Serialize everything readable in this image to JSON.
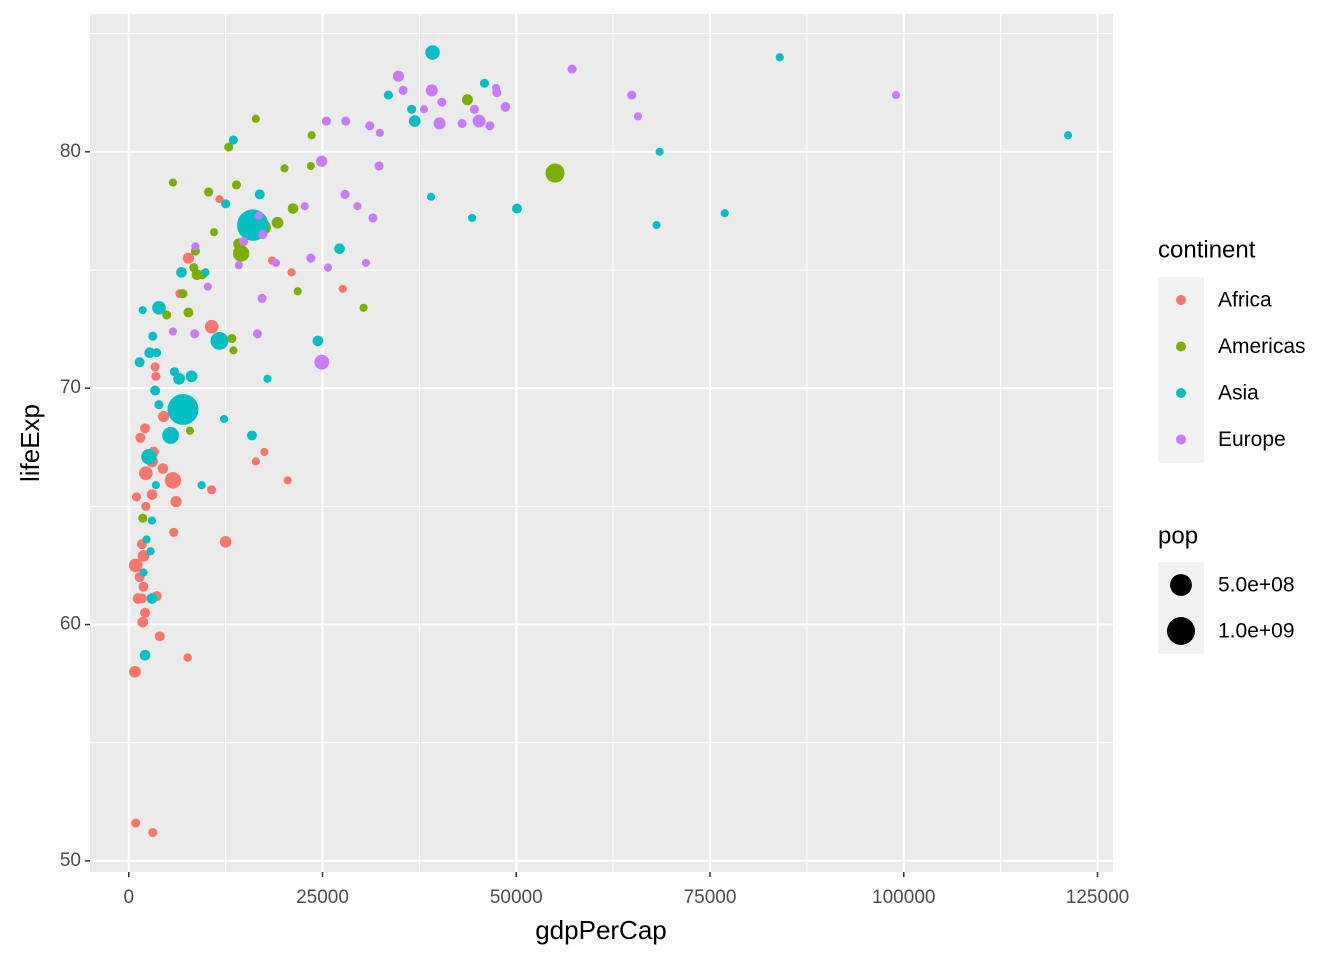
{
  "chart_data": {
    "type": "scatter",
    "x_label": "gdpPerCap",
    "y_label": "lifeExp",
    "xlim": [
      -5000,
      127000
    ],
    "ylim": [
      49.53,
      85.83
    ],
    "xticks": [
      0,
      25000,
      50000,
      75000,
      100000,
      125000
    ],
    "yticks": [
      50,
      60,
      70,
      80
    ],
    "grid": true,
    "legend_position": "right",
    "color_legend_title": "continent",
    "size_legend_title": "pop",
    "size_legend": [
      {
        "value": 500000000,
        "label": "5.0e+08"
      },
      {
        "value": 1000000000,
        "label": "1.0e+09"
      }
    ],
    "series": [
      {
        "name": "Africa",
        "color": "#F8766D",
        "x": [
          900,
          3100,
          800,
          7600,
          4000,
          1800,
          2100,
          1700,
          3600,
          1200,
          1900,
          1400,
          900,
          1900,
          1700,
          12500,
          5800,
          1000,
          3000,
          2200,
          6100,
          10700,
          20500,
          5700,
          2200,
          3000,
          3200,
          17500,
          16400,
          4400,
          1500,
          2100,
          4500,
          3500,
          3400,
          10700,
          6600,
          7700,
          18500,
          21000,
          27600,
          11700
        ],
        "values": [
          51.6,
          51.2,
          58.0,
          58.6,
          59.5,
          60.1,
          60.5,
          61.1,
          61.2,
          61.1,
          61.6,
          62.0,
          62.5,
          62.9,
          63.4,
          63.5,
          63.9,
          65.4,
          65.5,
          65.0,
          65.2,
          65.7,
          66.1,
          66.1,
          66.4,
          66.9,
          67.3,
          67.3,
          66.9,
          66.6,
          67.9,
          68.3,
          68.8,
          70.5,
          70.9,
          72.6,
          74.0,
          75.5,
          75.4,
          74.9,
          74.2,
          78.0
        ],
        "sizes": [
          10000000,
          10000000,
          50000000,
          5000000,
          20000000,
          30000000,
          20000000,
          20000000,
          20000000,
          30000000,
          20000000,
          20000000,
          100000000,
          50000000,
          20000000,
          50000000,
          10000000,
          10000000,
          30000000,
          10000000,
          40000000,
          10000000,
          3000000,
          200000000,
          100000000,
          50000000,
          30000000,
          3000000,
          3000000,
          30000000,
          20000000,
          20000000,
          40000000,
          10000000,
          10000000,
          100000000,
          10000000,
          40000000,
          3000000,
          3000000,
          3000000,
          3000000
        ]
      },
      {
        "name": "Americas",
        "color": "#7CAE00",
        "x": [
          1800,
          7900,
          4900,
          7700,
          7000,
          8800,
          9500,
          8400,
          8600,
          14500,
          14200,
          17400,
          19200,
          21200,
          21800,
          5700,
          10300,
          13900,
          12900,
          16400,
          20100,
          23500,
          23600,
          13300,
          13500,
          30300,
          43700,
          55000,
          11000
        ],
        "values": [
          64.5,
          68.2,
          73.1,
          73.2,
          74.0,
          74.8,
          74.8,
          75.1,
          75.8,
          75.7,
          76.1,
          76.8,
          77.0,
          77.6,
          74.1,
          78.7,
          78.3,
          78.6,
          80.2,
          81.4,
          79.3,
          79.4,
          80.7,
          72.1,
          71.6,
          73.4,
          82.2,
          79.1,
          76.6
        ],
        "sizes": [
          10000000,
          3000000,
          10000000,
          20000000,
          10000000,
          30000000,
          10000000,
          10000000,
          10000000,
          200000000,
          40000000,
          130000000,
          50000000,
          30000000,
          3000000,
          3000000,
          10000000,
          10000000,
          10000000,
          3000000,
          3000000,
          3000000,
          3000000,
          10000000,
          3000000,
          3000000,
          36000000,
          330000000,
          3000000
        ]
      },
      {
        "name": "Asia",
        "color": "#00BFC4",
        "x": [
          39200,
          45900,
          84000,
          121200,
          33500,
          36500,
          36900,
          68500,
          39000,
          44300,
          50100,
          68100,
          76900,
          13500,
          16900,
          12500,
          16000,
          27200,
          6800,
          3900,
          1800,
          1400,
          2700,
          3600,
          3100,
          6500,
          8100,
          5900,
          11700,
          17900,
          24400,
          3400,
          3900,
          7000,
          5400,
          15900,
          12300,
          2600,
          3500,
          2300,
          2800,
          1900,
          3000,
          2100,
          9400,
          9900,
          3000
        ],
        "values": [
          84.2,
          82.9,
          84.0,
          80.7,
          82.4,
          81.8,
          81.3,
          80.0,
          78.1,
          77.2,
          77.6,
          76.9,
          77.4,
          80.5,
          78.2,
          77.8,
          76.9,
          75.9,
          74.9,
          73.4,
          73.3,
          71.1,
          71.5,
          71.5,
          72.2,
          70.4,
          70.5,
          70.7,
          72.0,
          70.4,
          72.0,
          69.9,
          69.3,
          69.1,
          68.0,
          68.0,
          68.7,
          67.1,
          65.9,
          63.6,
          63.1,
          62.2,
          61.1,
          58.7,
          65.9,
          74.9,
          64.4
        ],
        "sizes": [
          130000000,
          10000000,
          3000000,
          3000000,
          10000000,
          10000000,
          50000000,
          3000000,
          3000000,
          3000000,
          20000000,
          3000000,
          3000000,
          10000000,
          20000000,
          10000000,
          1350000000,
          30000000,
          30000000,
          100000000,
          3000000,
          20000000,
          30000000,
          10000000,
          10000000,
          50000000,
          50000000,
          10000000,
          270000000,
          3000000,
          30000000,
          20000000,
          10000000,
          1300000000,
          220000000,
          20000000,
          3000000,
          160000000,
          3000000,
          3000000,
          3000000,
          3000000,
          30000000,
          30000000,
          3000000,
          3000000,
          3000000
        ]
      },
      {
        "name": "Europe",
        "color": "#C77CFF",
        "x": [
          57200,
          64900,
          65700,
          99000,
          34800,
          35400,
          39100,
          40400,
          38100,
          40100,
          43000,
          44600,
          45200,
          47400,
          47500,
          48600,
          46600,
          25500,
          28000,
          31100,
          32400,
          24900,
          32300,
          27900,
          22700,
          29500,
          31500,
          16800,
          17300,
          14800,
          14200,
          19000,
          30600,
          23500,
          25700,
          10200,
          17200,
          8600,
          5700,
          8500,
          16600,
          24900
        ],
        "values": [
          83.5,
          82.4,
          81.5,
          82.4,
          83.2,
          82.6,
          82.6,
          82.1,
          81.8,
          81.2,
          81.2,
          81.8,
          81.3,
          82.7,
          82.5,
          81.9,
          81.1,
          81.3,
          81.3,
          81.1,
          80.8,
          79.6,
          79.4,
          78.2,
          77.7,
          77.7,
          77.2,
          77.3,
          76.5,
          76.2,
          75.2,
          75.3,
          75.3,
          75.5,
          75.1,
          74.3,
          73.8,
          76.0,
          72.4,
          72.3,
          72.3,
          71.1
        ],
        "sizes": [
          10000000,
          10000000,
          3000000,
          3000000,
          40000000,
          10000000,
          60000000,
          10000000,
          3000000,
          60000000,
          10000000,
          10000000,
          80000000,
          3000000,
          10000000,
          17000000,
          10000000,
          10000000,
          10000000,
          10000000,
          3000000,
          40000000,
          10000000,
          10000000,
          3000000,
          3000000,
          10000000,
          3000000,
          10000000,
          10000000,
          3000000,
          3000000,
          3000000,
          10000000,
          3000000,
          3000000,
          10000000,
          3000000,
          3000000,
          10000000,
          10000000,
          140000000
        ]
      }
    ]
  }
}
